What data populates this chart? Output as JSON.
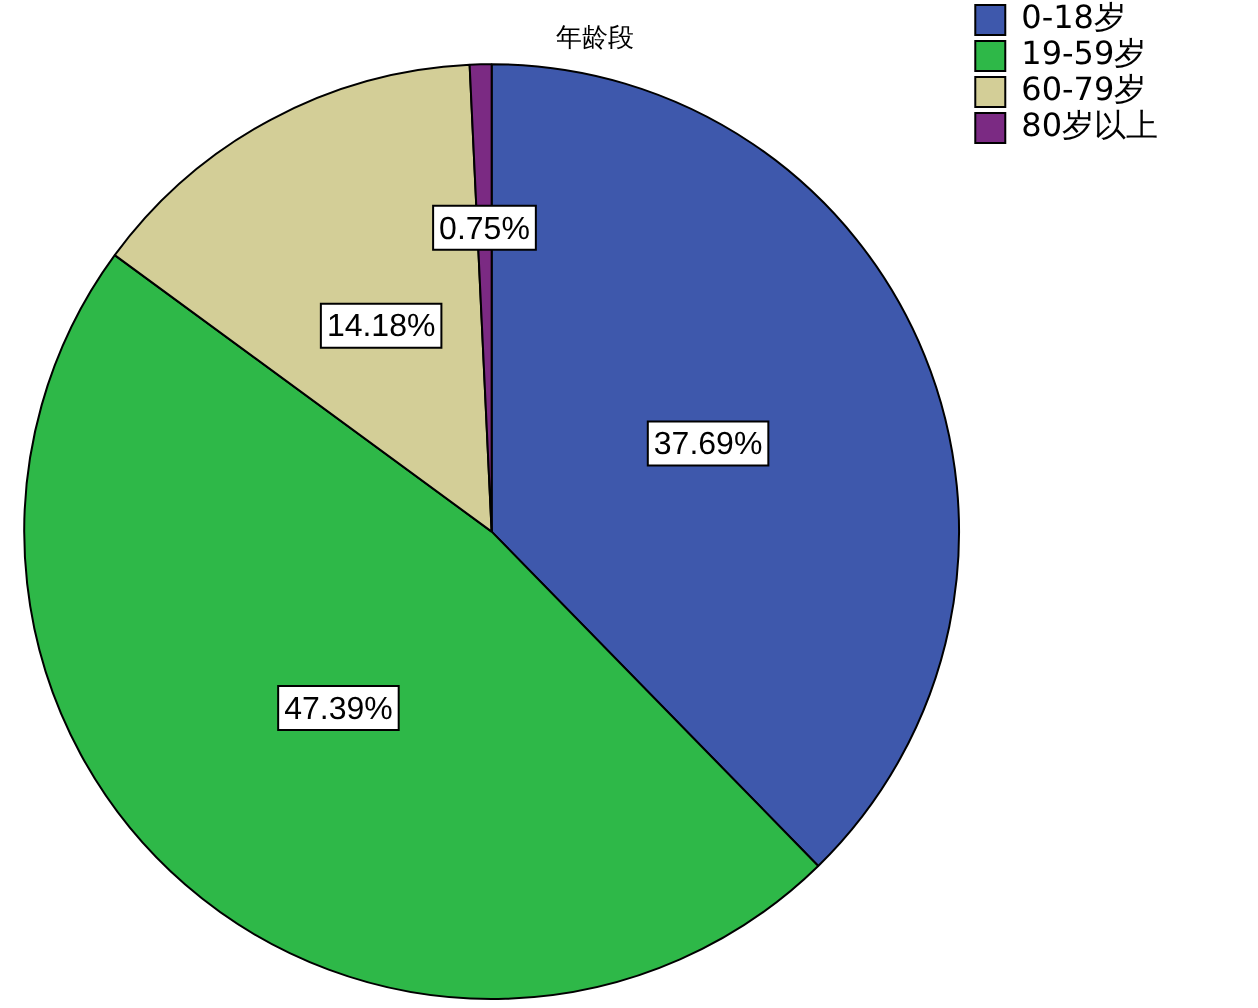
{
  "chart_data": {
    "type": "pie",
    "title": "年龄段",
    "categories": [
      "0-18岁",
      "19-59岁",
      "60-79岁",
      "80岁以上"
    ],
    "values": [
      37.69,
      47.39,
      14.18,
      0.75
    ],
    "colors": [
      "#3e58ac",
      "#2eb848",
      "#d3ce97",
      "#7b2a83"
    ],
    "value_labels": [
      "37.69%",
      "47.39%",
      "14.18%",
      "0.75%"
    ],
    "legend": "top right"
  }
}
